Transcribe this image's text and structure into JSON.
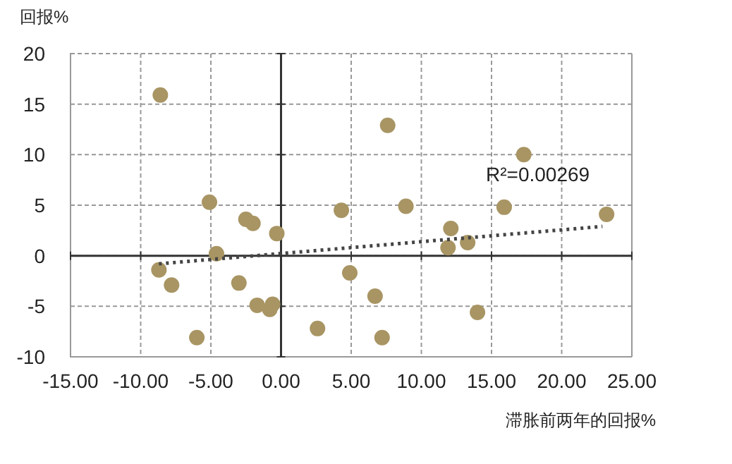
{
  "chart_data": {
    "type": "scatter",
    "ylabel": "回报%",
    "xlabel": "滞胀前两年的回报%",
    "annotations": [
      "R²=0.00269"
    ],
    "xlim": [
      -15,
      25
    ],
    "ylim": [
      -10,
      20
    ],
    "xticks": [
      {
        "value": -15,
        "label": "-15.00"
      },
      {
        "value": -10,
        "label": "-10.00"
      },
      {
        "value": -5,
        "label": "-5.00"
      },
      {
        "value": 0,
        "label": "0.00"
      },
      {
        "value": 5,
        "label": "5.00"
      },
      {
        "value": 10,
        "label": "10.00"
      },
      {
        "value": 15,
        "label": "15.00"
      },
      {
        "value": 20,
        "label": "20.00"
      },
      {
        "value": 25,
        "label": "25.00"
      }
    ],
    "yticks": [
      -10,
      -5,
      0,
      5,
      10,
      15,
      20
    ],
    "grid": true,
    "series": [
      {
        "type": "scatter",
        "color": "#a89563",
        "marker": "circle",
        "x": [
          -8.6,
          -5.1,
          -4.6,
          -8.7,
          -7.8,
          -6.0,
          -2.5,
          -2.0,
          -0.3,
          -3.0,
          -1.7,
          -0.6,
          -0.8,
          2.6,
          4.3,
          4.9,
          7.6,
          8.9,
          6.7,
          7.2,
          12.1,
          11.9,
          13.3,
          14.0,
          15.9,
          17.3,
          23.2
        ],
        "values": [
          15.9,
          5.3,
          0.2,
          -1.4,
          -2.9,
          -8.1,
          3.6,
          3.2,
          2.2,
          -2.7,
          -4.9,
          -4.8,
          -5.3,
          -7.2,
          4.5,
          -1.7,
          12.9,
          4.9,
          -4.0,
          -8.1,
          2.7,
          0.8,
          1.3,
          -5.6,
          4.8,
          10.0,
          4.1
        ]
      },
      {
        "type": "line",
        "color": "#444444",
        "line_style": "dotted",
        "marker": "none",
        "x": [
          -8.7,
          22.9
        ],
        "values": [
          -0.8,
          2.9
        ]
      }
    ]
  }
}
